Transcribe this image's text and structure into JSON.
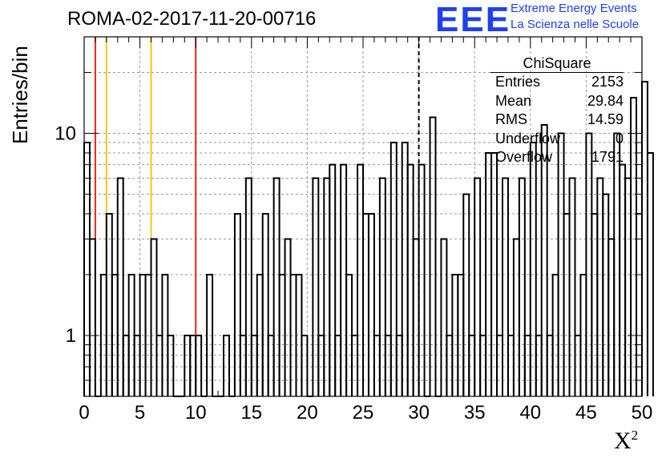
{
  "header": {
    "run_title": "ROMA-02-2017-11-20-00716",
    "logo_text": "EEE",
    "logo_line1": "Extreme Energy Events",
    "logo_line2": "La Scienza nelle Scuole"
  },
  "axes": {
    "ylabel": "Entries/bin",
    "xlabel_base": "X",
    "xlabel_sup": "2"
  },
  "stats_box": {
    "title": "ChiSquare",
    "rows": [
      {
        "label": "Entries",
        "value": "2153"
      },
      {
        "label": "Mean",
        "value": "29.84"
      },
      {
        "label": "RMS",
        "value": "14.59"
      },
      {
        "label": "Underflow",
        "value": "0"
      },
      {
        "label": "Overflow",
        "value": "1791"
      }
    ]
  },
  "colors": {
    "logo": "#1f3ff0",
    "red_marker": "#e8261b",
    "yellow_marker": "#f5c518",
    "histogram": "#000000",
    "grid": "#9a9a9a"
  },
  "chart_data": {
    "type": "histogram",
    "title": "ROMA-02-2017-11-20-00716",
    "xlabel": "X²",
    "ylabel": "Entries/bin",
    "x_scale": "linear",
    "y_scale": "log",
    "xlim": [
      0,
      50
    ],
    "ylim": [
      0.5,
      30
    ],
    "bin_width": 0.5,
    "x_ticks": [
      0,
      5,
      10,
      15,
      20,
      25,
      30,
      35,
      40,
      45,
      50
    ],
    "y_ticks": [
      1,
      10
    ],
    "grid": true,
    "bin_values": [
      9,
      3,
      0,
      2,
      4,
      2,
      6,
      1,
      2,
      1,
      2,
      2,
      3,
      1,
      2,
      1,
      0,
      0,
      1,
      1,
      1,
      0,
      2,
      0,
      0,
      1,
      0,
      4,
      1,
      6,
      1,
      2,
      4,
      1,
      6,
      2,
      3,
      2,
      2,
      1,
      0,
      6,
      1,
      6,
      7,
      1,
      7,
      2,
      1,
      7,
      4,
      4,
      1,
      6,
      1,
      9,
      1,
      9,
      7,
      3,
      7,
      0,
      12,
      0,
      3,
      1,
      2,
      2,
      5,
      1,
      6,
      1,
      8,
      8,
      1,
      6,
      1,
      3,
      6,
      1,
      9,
      1,
      11,
      1,
      2,
      10,
      4,
      6,
      1,
      2,
      10,
      4,
      6,
      5,
      3,
      10,
      7,
      6,
      15,
      4,
      18,
      8
    ],
    "markers": [
      {
        "x": 1,
        "color": "red",
        "style": "solid"
      },
      {
        "x": 2,
        "color": "yellow",
        "style": "solid"
      },
      {
        "x": 6,
        "color": "yellow",
        "style": "solid"
      },
      {
        "x": 10,
        "color": "red",
        "style": "solid"
      },
      {
        "x": 30,
        "color": "black",
        "style": "dashed"
      }
    ]
  }
}
